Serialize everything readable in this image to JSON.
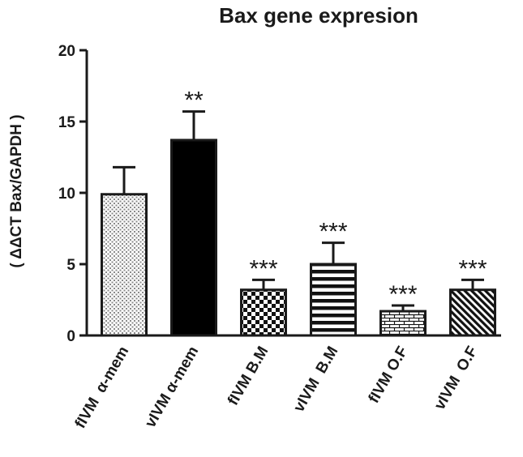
{
  "chart_data": {
    "type": "bar",
    "title": "Bax gene expresion",
    "ylabel": "( ΔΔCT Bax/GAPDH )",
    "xlabel": "",
    "ylim": [
      0,
      20
    ],
    "yticks": [
      0,
      5,
      10,
      15,
      20
    ],
    "categories": [
      "fIVM  α-mem",
      "vIVM α-mem",
      "fIVM B.M",
      "vIVM  B.M",
      "fIVM O.F",
      "vIVM  O.F"
    ],
    "values": [
      9.9,
      13.7,
      3.2,
      5.0,
      1.7,
      3.2
    ],
    "errors": [
      1.9,
      2.0,
      0.7,
      1.5,
      0.4,
      0.7
    ],
    "significance": [
      "",
      "**",
      "***",
      "***",
      "***",
      "***"
    ],
    "fills": [
      "dots",
      "solid",
      "checker",
      "hstripes",
      "bricks",
      "diagonal"
    ],
    "colors": {
      "ink": "#1a1a1a",
      "background": "#ffffff"
    }
  }
}
